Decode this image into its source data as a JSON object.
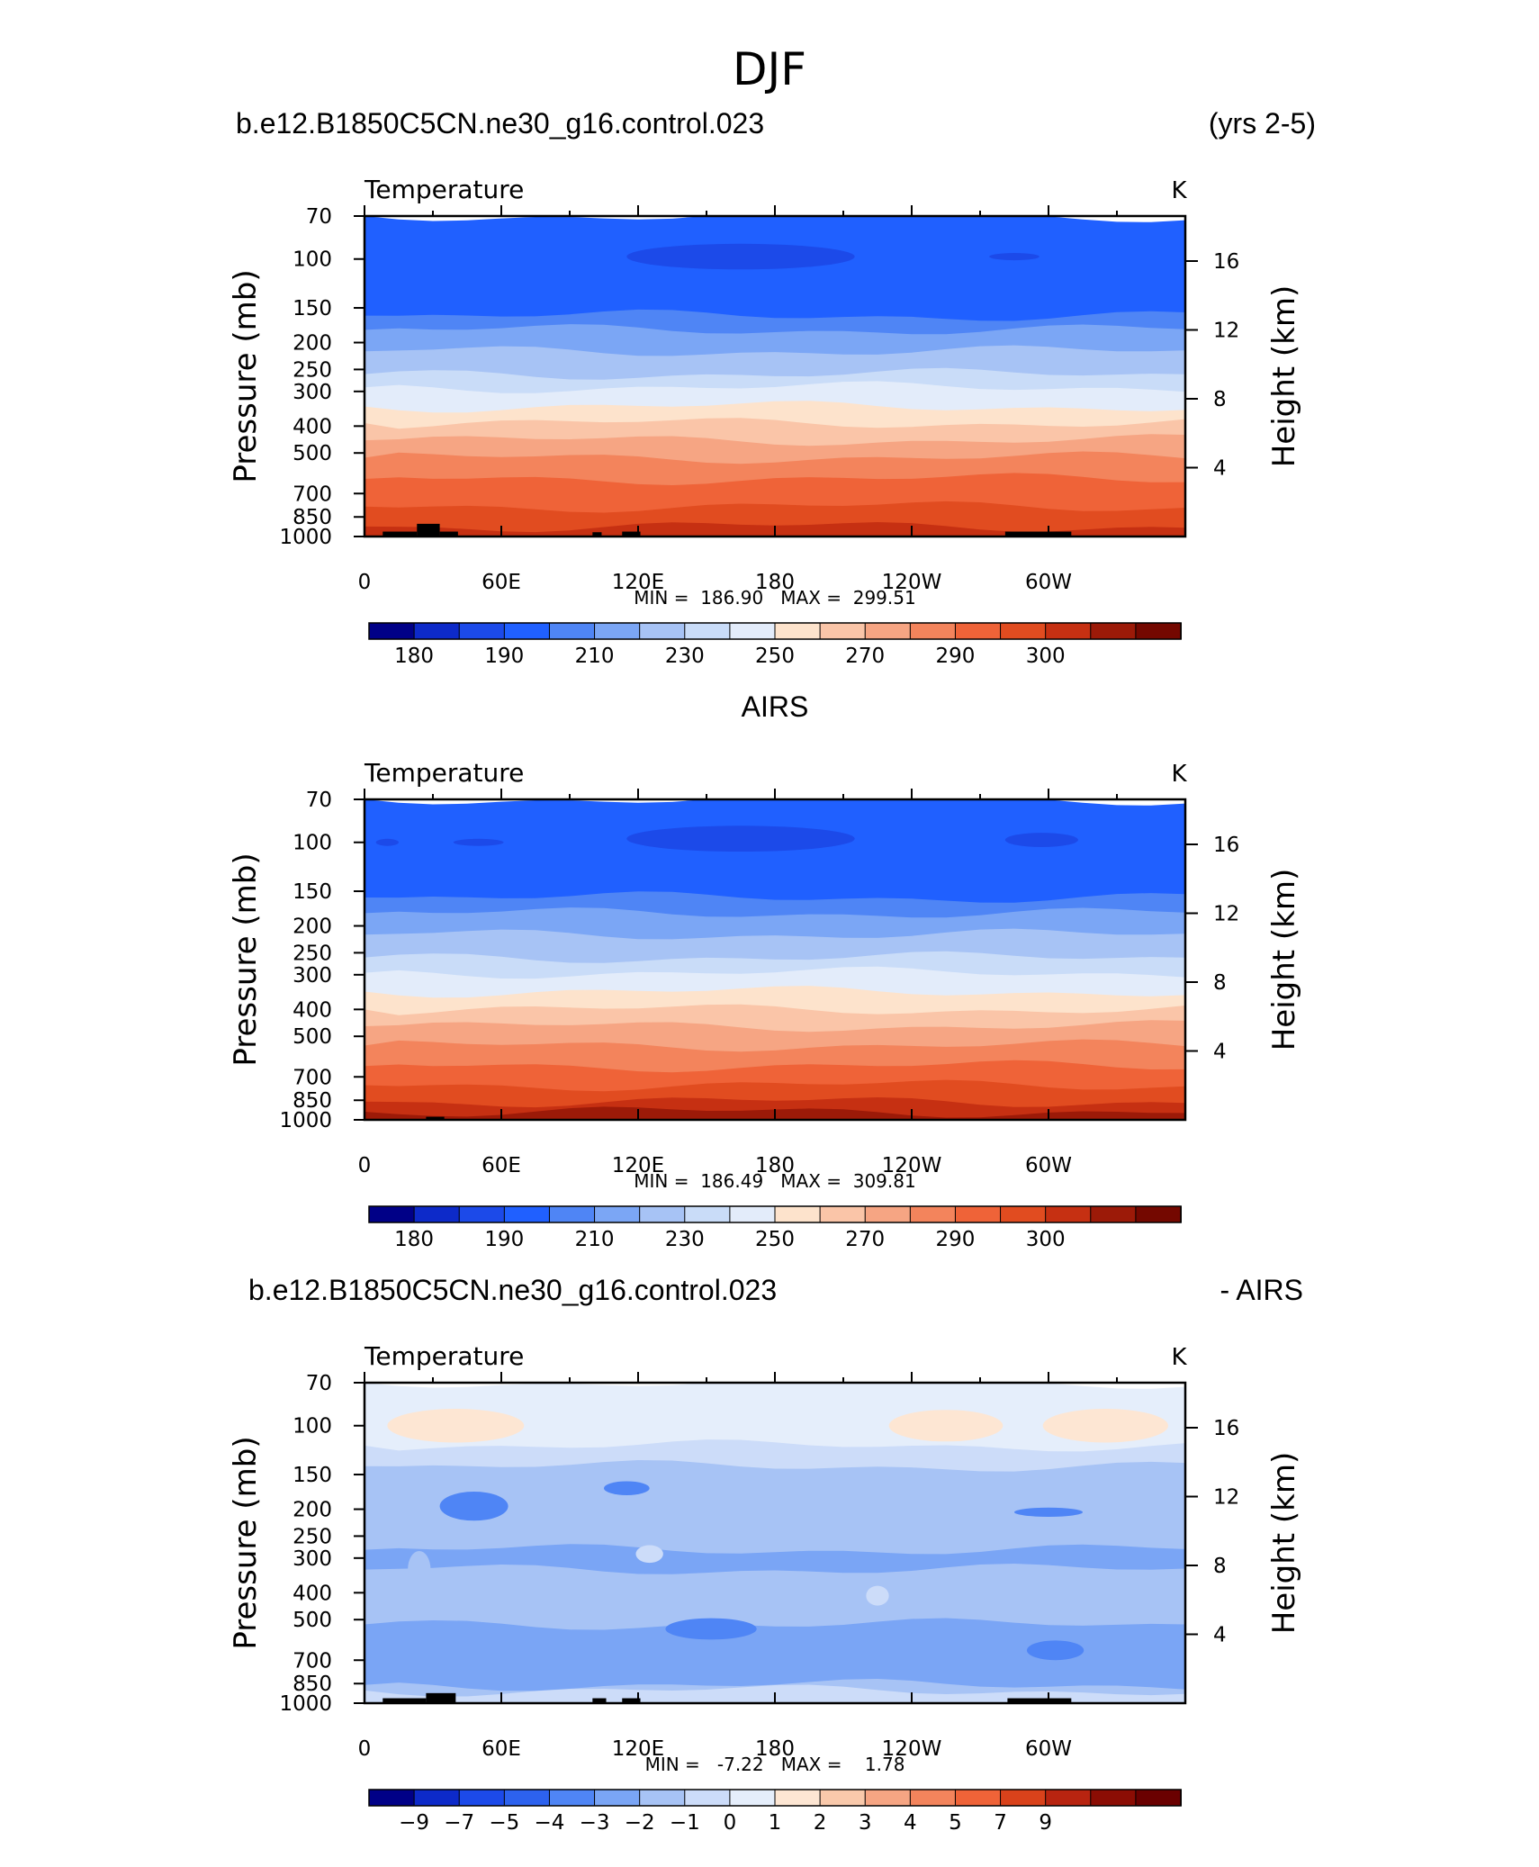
{
  "page": {
    "title": "DJF"
  },
  "colors": {
    "base": [
      "#000087",
      "#0d2ac9",
      "#1c4ae9",
      "#2060ff",
      "#4f85f5",
      "#7ba6f5",
      "#a7c3f5",
      "#c9dcf8",
      "#e3ecfa",
      "#fde3cc",
      "#fac5a8",
      "#f6a583",
      "#f3845c",
      "#ef6338",
      "#e14c20",
      "#c63012",
      "#9c1a08",
      "#740800"
    ],
    "diff": [
      "#000087",
      "#0d2ac9",
      "#1c4ae9",
      "#2d62ee",
      "#4f85f5",
      "#7aa5f5",
      "#a7c3f5",
      "#ccdcf9",
      "#e5eefb",
      "#fde6d3",
      "#f9c9ab",
      "#f6a583",
      "#f3845c",
      "#ef6338",
      "#d9421b",
      "#b82410",
      "#8b0d04",
      "#6a0000"
    ],
    "topography": "#000000"
  },
  "chart_data": [
    {
      "id": "model",
      "type": "contour",
      "left_title": "b.e12.B1850C5CN.ne30_g16.control.023",
      "right_title": "(yrs 2-5)",
      "center_title": "",
      "variable": "Temperature",
      "units": "K",
      "ylabel": "Pressure (mb)",
      "ylabel_right": "Height (km)",
      "x_ticks": [
        "0",
        "60E",
        "120E",
        "180",
        "120W",
        "60W"
      ],
      "x_tick_values": [
        0,
        60,
        120,
        180,
        240,
        300
      ],
      "xlim": [
        0,
        360
      ],
      "y_ticks": [
        70,
        100,
        150,
        200,
        250,
        300,
        400,
        500,
        700,
        850,
        1000
      ],
      "ylim": [
        70,
        1000
      ],
      "height_ticks": [
        4,
        8,
        12,
        16
      ],
      "stats": "MIN =  186.90   MAX =  299.51",
      "min": 186.9,
      "max": 299.51,
      "palette": "base",
      "colorbar_labels": [
        "180",
        "190",
        "210",
        "230",
        "250",
        "270",
        "290",
        "300"
      ],
      "levels": [
        {
          "p": 70,
          "c": 3
        },
        {
          "p": 140,
          "c": 3
        },
        {
          "p": 160,
          "c": 4
        },
        {
          "p": 180,
          "c": 5
        },
        {
          "p": 215,
          "c": 6
        },
        {
          "p": 260,
          "c": 7
        },
        {
          "p": 290,
          "c": 8
        },
        {
          "p": 340,
          "c": 9
        },
        {
          "p": 390,
          "c": 10
        },
        {
          "p": 450,
          "c": 11
        },
        {
          "p": 520,
          "c": 12
        },
        {
          "p": 620,
          "c": 13
        },
        {
          "p": 780,
          "c": 14
        },
        {
          "p": 920,
          "c": 15
        }
      ],
      "cold_blobs": [
        {
          "lon": 165,
          "p": 98,
          "w": 100,
          "h": 11
        },
        {
          "lon": 285,
          "p": 98,
          "w": 22,
          "h": 3
        }
      ],
      "topo": [
        {
          "lon0": 8,
          "lon1": 23,
          "p": 960
        },
        {
          "lon0": 23,
          "lon1": 33,
          "p": 900
        },
        {
          "lon0": 33,
          "lon1": 41,
          "p": 960
        },
        {
          "lon0": 100,
          "lon1": 104,
          "p": 965
        },
        {
          "lon0": 113,
          "lon1": 121,
          "p": 960
        },
        {
          "lon0": 281,
          "lon1": 310,
          "p": 960
        }
      ]
    },
    {
      "id": "obs",
      "type": "contour",
      "left_title": "",
      "right_title": "",
      "center_title": "AIRS",
      "variable": "Temperature",
      "units": "K",
      "ylabel": "Pressure (mb)",
      "ylabel_right": "Height (km)",
      "x_ticks": [
        "0",
        "60E",
        "120E",
        "180",
        "120W",
        "60W"
      ],
      "x_tick_values": [
        0,
        60,
        120,
        180,
        240,
        300
      ],
      "xlim": [
        0,
        360
      ],
      "y_ticks": [
        70,
        100,
        150,
        200,
        250,
        300,
        400,
        500,
        700,
        850,
        1000
      ],
      "ylim": [
        70,
        1000
      ],
      "height_ticks": [
        4,
        8,
        12,
        16
      ],
      "stats": "MIN =  186.49   MAX =  309.81",
      "min": 186.49,
      "max": 309.81,
      "palette": "base",
      "colorbar_labels": [
        "180",
        "190",
        "210",
        "230",
        "250",
        "270",
        "290",
        "300"
      ],
      "levels": [
        {
          "p": 70,
          "c": 3
        },
        {
          "p": 138,
          "c": 3
        },
        {
          "p": 158,
          "c": 4
        },
        {
          "p": 180,
          "c": 5
        },
        {
          "p": 215,
          "c": 6
        },
        {
          "p": 260,
          "c": 7
        },
        {
          "p": 295,
          "c": 8
        },
        {
          "p": 345,
          "c": 9
        },
        {
          "p": 400,
          "c": 10
        },
        {
          "p": 460,
          "c": 11
        },
        {
          "p": 540,
          "c": 12
        },
        {
          "p": 640,
          "c": 13
        },
        {
          "p": 750,
          "c": 14
        },
        {
          "p": 860,
          "c": 15
        },
        {
          "p": 935,
          "c": 16
        }
      ],
      "cold_blobs": [
        {
          "lon": 165,
          "p": 97,
          "w": 100,
          "h": 11
        },
        {
          "lon": 297,
          "p": 98,
          "w": 32,
          "h": 6
        },
        {
          "lon": 50,
          "p": 100,
          "w": 22,
          "h": 3
        },
        {
          "lon": 10,
          "p": 100,
          "w": 10,
          "h": 3
        }
      ],
      "topo": [
        {
          "lon0": 27,
          "lon1": 35,
          "p": 975
        }
      ]
    },
    {
      "id": "diff",
      "type": "contour",
      "left_title": "b.e12.B1850C5CN.ne30_g16.control.023",
      "right_title": "- AIRS",
      "center_title": "",
      "variable": "Temperature",
      "units": "K",
      "ylabel": "Pressure (mb)",
      "ylabel_right": "Height (km)",
      "x_ticks": [
        "0",
        "60E",
        "120E",
        "180",
        "120W",
        "60W"
      ],
      "x_tick_values": [
        0,
        60,
        120,
        180,
        240,
        300
      ],
      "xlim": [
        0,
        360
      ],
      "y_ticks": [
        70,
        100,
        150,
        200,
        250,
        300,
        400,
        500,
        700,
        850,
        1000
      ],
      "ylim": [
        70,
        1000
      ],
      "height_ticks": [
        4,
        8,
        12,
        16
      ],
      "stats": "MIN =   -7.22   MAX =    1.78",
      "min": -7.22,
      "max": 1.78,
      "palette": "diff",
      "colorbar_labels": [
        "-9",
        "-7",
        "-5",
        "-4",
        "-3",
        "-2",
        "-1",
        "0",
        "1",
        "2",
        "3",
        "4",
        "5",
        "7",
        "9"
      ],
      "levels": [
        {
          "p": 70,
          "c": 8
        },
        {
          "p": 118,
          "c": 7
        },
        {
          "p": 140,
          "c": 6
        },
        {
          "p": 280,
          "c": 5
        },
        {
          "p": 330,
          "c": 6
        },
        {
          "p": 520,
          "c": 5
        },
        {
          "p": 860,
          "c": 6
        },
        {
          "p": 900,
          "c": 7
        }
      ],
      "warm_blobs": [
        {
          "lon": 40,
          "p": 100,
          "w": 60,
          "h": 15,
          "c": 9
        },
        {
          "lon": 255,
          "p": 100,
          "w": 50,
          "h": 14,
          "c": 9
        },
        {
          "lon": 325,
          "p": 100,
          "w": 55,
          "h": 15,
          "c": 9
        }
      ],
      "cold_blobs": [
        {
          "lon": 48,
          "p": 195,
          "w": 30,
          "h": 25,
          "c": 4
        },
        {
          "lon": 152,
          "p": 540,
          "w": 40,
          "h": 50,
          "c": 4
        },
        {
          "lon": 303,
          "p": 645,
          "w": 25,
          "h": 55,
          "c": 4
        },
        {
          "lon": 115,
          "p": 168,
          "w": 20,
          "h": 10,
          "c": 4
        },
        {
          "lon": 300,
          "p": 205,
          "w": 30,
          "h": 8,
          "c": 4
        }
      ],
      "light_blobs": [
        {
          "lon": 24,
          "p": 330,
          "w": 10,
          "h": 55,
          "c": 6
        },
        {
          "lon": 225,
          "p": 410,
          "w": 10,
          "h": 35,
          "c": 7
        },
        {
          "lon": 125,
          "p": 290,
          "w": 12,
          "h": 22,
          "c": 7
        }
      ],
      "topo": [
        {
          "lon0": 8,
          "lon1": 27,
          "p": 960
        },
        {
          "lon0": 27,
          "lon1": 40,
          "p": 920
        },
        {
          "lon0": 100,
          "lon1": 106,
          "p": 960
        },
        {
          "lon0": 113,
          "lon1": 121,
          "p": 960
        },
        {
          "lon0": 282,
          "lon1": 310,
          "p": 960
        }
      ]
    }
  ]
}
